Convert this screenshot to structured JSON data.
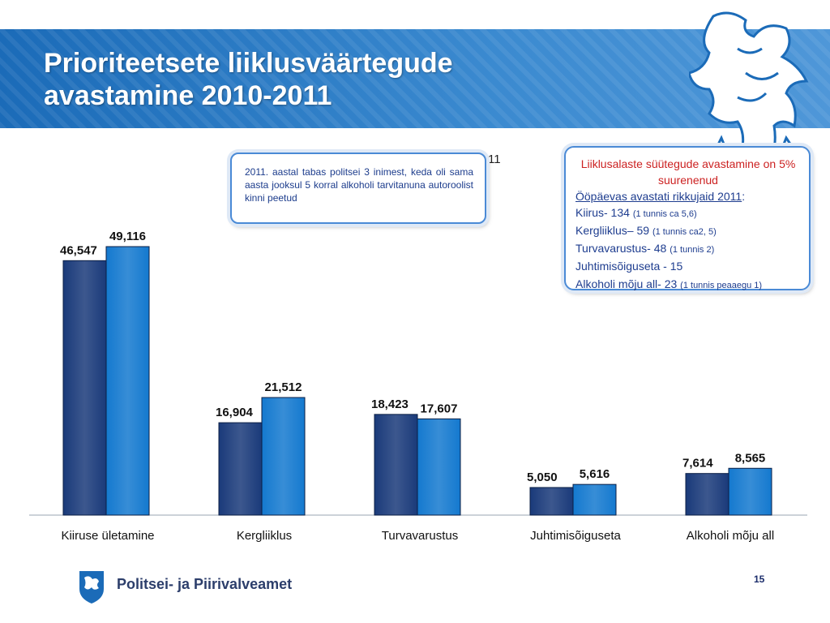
{
  "title_line1": "Prioriteetsete liiklusväärtegude",
  "title_line2": "avastamine 2010-2011",
  "note_text": "2011. aastal tabas politsei 3 inimest, keda oli sama aasta jooksul 5 korral alkoholi tarvitanuna autoroolist kinni peetud",
  "stray_text": "11",
  "info": {
    "headline": "Liiklusalaste süütegude avastamine on 5% suurenenud",
    "subhead": "Ööpäevas avastati rikkujaid 2011",
    "subhead_suffix": ":",
    "rows": [
      {
        "main": "Kiirus- 134 ",
        "small": "(1 tunnis ca 5,6)"
      },
      {
        "main": "Kergliiklus– 59 ",
        "small": "(1 tunnis ca2, 5)"
      },
      {
        "main": "Turvavarustus- 48 ",
        "small": "(1 tunnis 2)"
      },
      {
        "main": "Juhtimisõiguseta - 15",
        "small": ""
      },
      {
        "main": "Alkoholi mõju all- 23 ",
        "small": "(1 tunnis peaaegu 1)"
      }
    ]
  },
  "logo_text": "Politsei- ja Piirivalveamet",
  "page_number": "15",
  "colors": {
    "dark": "#1a3a7a",
    "light": "#1479cf",
    "accent_red": "#cc2222"
  },
  "chart_data": {
    "type": "bar",
    "categories": [
      "Kiiruse ületamine",
      "Kergliiklus",
      "Turvavarustus",
      "Juhtimisõiguseta",
      "Alkoholi mõju all"
    ],
    "series": [
      {
        "values": [
          46547,
          16904,
          18423,
          5050,
          7614
        ],
        "labels": [
          "46,547",
          "16,904",
          "18,423",
          "5,050",
          "7,614"
        ]
      },
      {
        "values": [
          49116,
          21512,
          17607,
          5616,
          8565
        ],
        "labels": [
          "49,116",
          "21,512",
          "17,607",
          "5,616",
          "8,565"
        ]
      }
    ],
    "ylim": [
      0,
      55000
    ],
    "grid": false,
    "legend": "none"
  }
}
